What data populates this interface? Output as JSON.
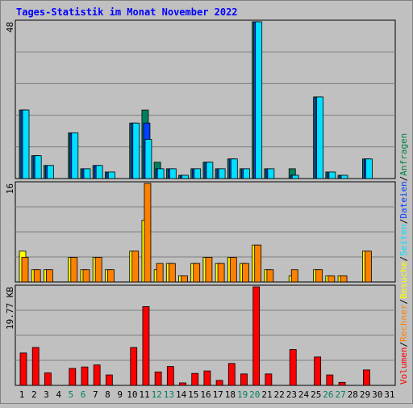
{
  "title": "Tages-Statistik im Monat November 2022",
  "right_legend": [
    {
      "text": "Volumen",
      "color": "#ff0000"
    },
    {
      "text": "/",
      "color": "#000000"
    },
    {
      "text": "Rechner",
      "color": "#ff8000"
    },
    {
      "text": "/",
      "color": "#000000"
    },
    {
      "text": "Besuche",
      "color": "#ffff00"
    },
    {
      "text": "/",
      "color": "#000000"
    },
    {
      "text": "Seiten",
      "color": "#00e0ff"
    },
    {
      "text": "/",
      "color": "#000000"
    },
    {
      "text": "Dateien",
      "color": "#0040ff"
    },
    {
      "text": "/",
      "color": "#000000"
    },
    {
      "text": "Anfragen",
      "color": "#008040"
    }
  ],
  "colors": {
    "background": "#c0c0c0",
    "plot": "#c0c0c0",
    "grid": "#808080",
    "anfragen": "#008060",
    "dateien": "#0040ff",
    "seiten": "#00e0ff",
    "besuche": "#ffff00",
    "rechner": "#ff8000",
    "volumen": "#ff0000",
    "weekend_label": "#008060",
    "weekday_label": "#000000",
    "title": "#0000ff"
  },
  "chart_data": [
    {
      "type": "bar",
      "panel": "top",
      "ymax_label": "48",
      "ylim": [
        0,
        48
      ],
      "categories": [
        "1",
        "2",
        "3",
        "4",
        "5",
        "6",
        "7",
        "8",
        "9",
        "10",
        "11",
        "12",
        "13",
        "14",
        "15",
        "16",
        "17",
        "18",
        "19",
        "20",
        "21",
        "22",
        "23",
        "24",
        "25",
        "26",
        "27",
        "28",
        "29",
        "30",
        "31"
      ],
      "weekend_days": [
        "5",
        "6",
        "12",
        "13",
        "19",
        "20",
        "26",
        "27"
      ],
      "series": [
        {
          "name": "Anfragen",
          "values": [
            21,
            7,
            4,
            0,
            14,
            3,
            4,
            2,
            0,
            17,
            21,
            5,
            3,
            1,
            3,
            5,
            3,
            6,
            3,
            48,
            3,
            0,
            3,
            0,
            25,
            2,
            1,
            0,
            6,
            0,
            0
          ]
        },
        {
          "name": "Dateien",
          "values": [
            21,
            7,
            4,
            0,
            14,
            3,
            4,
            2,
            0,
            17,
            17,
            3,
            3,
            1,
            3,
            5,
            3,
            6,
            3,
            48,
            3,
            0,
            1,
            0,
            25,
            2,
            1,
            0,
            6,
            0,
            0
          ]
        },
        {
          "name": "Seiten",
          "values": [
            21,
            7,
            4,
            0,
            14,
            3,
            4,
            2,
            0,
            17,
            12,
            3,
            3,
            1,
            3,
            5,
            3,
            6,
            3,
            48,
            3,
            0,
            1,
            0,
            25,
            2,
            1,
            0,
            6,
            0,
            0
          ]
        }
      ]
    },
    {
      "type": "bar",
      "panel": "middle",
      "ymax_label": "16",
      "ylim": [
        0,
        16
      ],
      "categories": [
        "1",
        "2",
        "3",
        "4",
        "5",
        "6",
        "7",
        "8",
        "9",
        "10",
        "11",
        "12",
        "13",
        "14",
        "15",
        "16",
        "17",
        "18",
        "19",
        "20",
        "21",
        "22",
        "23",
        "24",
        "25",
        "26",
        "27",
        "28",
        "29",
        "30",
        "31"
      ],
      "series": [
        {
          "name": "Besuche",
          "values": [
            5,
            2,
            2,
            0,
            4,
            2,
            4,
            2,
            0,
            5,
            10,
            2,
            3,
            1,
            3,
            4,
            3,
            4,
            3,
            6,
            2,
            0,
            1,
            0,
            2,
            1,
            1,
            0,
            5,
            0,
            0
          ]
        },
        {
          "name": "Rechner",
          "values": [
            4,
            2,
            2,
            0,
            4,
            2,
            4,
            2,
            0,
            5,
            16,
            3,
            3,
            1,
            3,
            4,
            3,
            4,
            3,
            6,
            2,
            0,
            2,
            0,
            2,
            1,
            1,
            0,
            5,
            0,
            0
          ]
        }
      ]
    },
    {
      "type": "bar",
      "panel": "bottom",
      "ymax_label": "19.77 KB",
      "ylim": [
        0,
        19.77
      ],
      "categories": [
        "1",
        "2",
        "3",
        "4",
        "5",
        "6",
        "7",
        "8",
        "9",
        "10",
        "11",
        "12",
        "13",
        "14",
        "15",
        "16",
        "17",
        "18",
        "19",
        "20",
        "21",
        "22",
        "23",
        "24",
        "25",
        "26",
        "27",
        "28",
        "29",
        "30",
        "31"
      ],
      "series": [
        {
          "name": "Volumen",
          "values": [
            6.5,
            7.6,
            2.5,
            0,
            3.4,
            3.7,
            4.1,
            2.1,
            0,
            7.6,
            15.8,
            2.7,
            3.8,
            0.5,
            2.4,
            2.9,
            1,
            4.4,
            2.3,
            19.77,
            2.3,
            0,
            7.2,
            0,
            5.7,
            2.1,
            0.6,
            0,
            3.1,
            0,
            0
          ]
        }
      ]
    }
  ]
}
